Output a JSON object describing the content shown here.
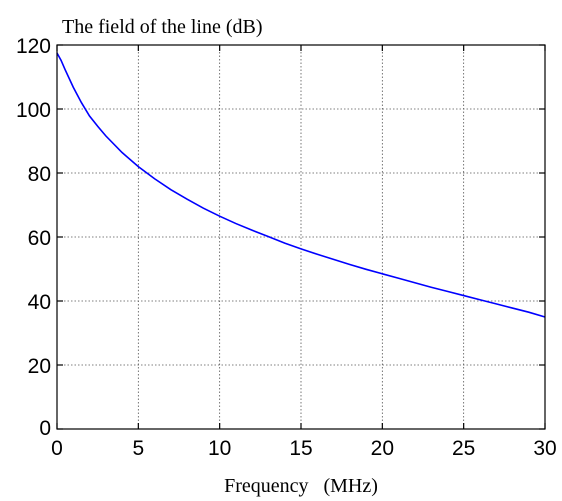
{
  "chart_data": {
    "type": "line",
    "title": "The field of the line (dB)",
    "xlabel": "Frequency   (MHz)",
    "ylabel": "",
    "xlim": [
      0,
      30
    ],
    "ylim": [
      0,
      120
    ],
    "xticks": [
      0,
      5,
      10,
      15,
      20,
      25,
      30
    ],
    "yticks": [
      0,
      20,
      40,
      60,
      80,
      100,
      120
    ],
    "xtick_labels": [
      "0",
      "5",
      "10",
      "15",
      "20",
      "25",
      "30"
    ],
    "ytick_labels": [
      "0",
      "20",
      "40",
      "60",
      "80",
      "100",
      "120"
    ],
    "grid": true,
    "series": [
      {
        "color": "#0000ff",
        "x": [
          0,
          0.25,
          0.5,
          1,
          1.5,
          2,
          2.5,
          3,
          4,
          5,
          6,
          7,
          8,
          9,
          10,
          11,
          12,
          13,
          14,
          15,
          16,
          17,
          18,
          19,
          20,
          21,
          22,
          23,
          24,
          25,
          26,
          27,
          28,
          29,
          30
        ],
        "y": [
          117.5,
          115.2,
          112.3,
          106.8,
          102.0,
          97.8,
          94.6,
          91.6,
          86.4,
          82.0,
          78.2,
          74.8,
          71.8,
          69.0,
          66.5,
          64.2,
          62.1,
          60.1,
          58.1,
          56.3,
          54.6,
          53.0,
          51.4,
          49.9,
          48.5,
          47.1,
          45.7,
          44.3,
          43.0,
          41.7,
          40.4,
          39.1,
          37.8,
          36.5,
          35.0
        ]
      }
    ]
  }
}
